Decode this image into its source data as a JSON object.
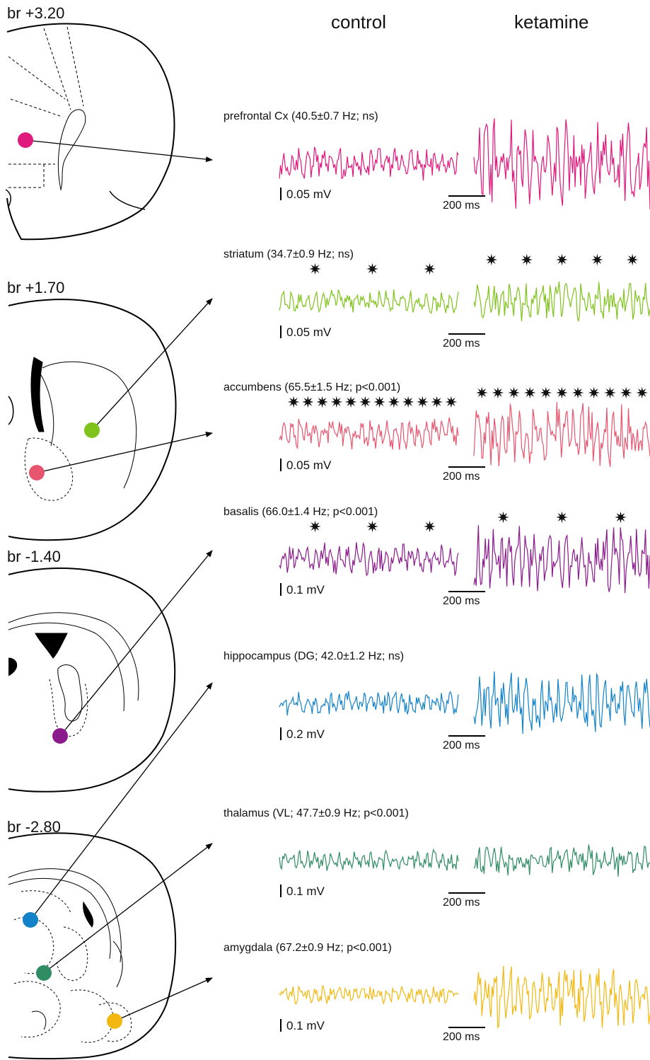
{
  "headers": {
    "control": "control",
    "ketamine": "ketamine"
  },
  "bregma": [
    "br +3.20",
    "br +1.70",
    "br -1.40",
    "br -2.80"
  ],
  "star_glyph": "✷",
  "traces": [
    {
      "id": "prefrontal",
      "label": "prefrontal Cx (40.5±0.7 Hz; ns)",
      "color": "#e0197d",
      "scale_v": "0.05 mV",
      "scale_t": "200 ms",
      "ctrl_amp": 22,
      "ket_amp": 60,
      "stars_ctrl": 0,
      "stars_ket": 0
    },
    {
      "id": "striatum",
      "label": "striatum (34.7±0.9 Hz; ns)",
      "color": "#7fc31c",
      "scale_v": "0.05 mV",
      "scale_t": "200 ms",
      "ctrl_amp": 16,
      "ket_amp": 28,
      "stars_ctrl": 3,
      "stars_ket": 5
    },
    {
      "id": "accumbens",
      "label": "accumbens (65.5±1.5 Hz; p<0.001)",
      "color": "#e6566f",
      "scale_v": "0.05 mV",
      "scale_t": "200 ms",
      "ctrl_amp": 22,
      "ket_amp": 44,
      "stars_ctrl": 12,
      "stars_ket": 11
    },
    {
      "id": "basalis",
      "label": "basalis (66.0±1.4 Hz; p<0.001)",
      "color": "#8b1a8c",
      "scale_v": "0.1 mV",
      "scale_t": "200 ms",
      "ctrl_amp": 22,
      "ket_amp": 45,
      "stars_ctrl": 3,
      "stars_ket": 3
    },
    {
      "id": "hippocampus",
      "label": "hippocampus (DG; 42.0±1.2 Hz; ns)",
      "color": "#1382c9",
      "scale_v": "0.2 mV",
      "scale_t": "200 ms",
      "ctrl_amp": 16,
      "ket_amp": 42,
      "stars_ctrl": 0,
      "stars_ket": 0
    },
    {
      "id": "thalamus",
      "label": "thalamus (VL; 47.7±0.9 Hz; p<0.001)",
      "color": "#2f8c63",
      "scale_v": "0.1 mV",
      "scale_t": "200 ms",
      "ctrl_amp": 14,
      "ket_amp": 22,
      "stars_ctrl": 0,
      "stars_ket": 0
    },
    {
      "id": "amygdala",
      "label": "amygdala (67.2±0.9 Hz; p<0.001)",
      "color": "#f2b811",
      "scale_v": "0.1 mV",
      "scale_t": "200 ms",
      "ctrl_amp": 12,
      "ket_amp": 45,
      "stars_ctrl": 0,
      "stars_ket": 0
    }
  ]
}
